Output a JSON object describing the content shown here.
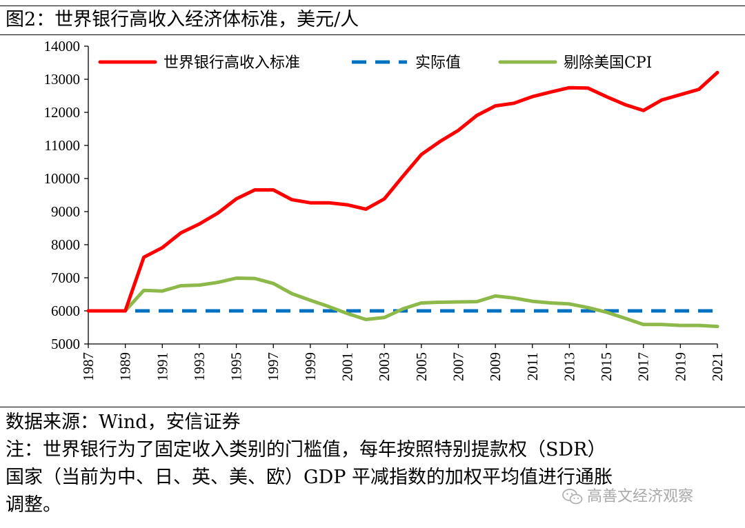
{
  "title": "图2：世界银行高收入经济体标准，美元/人",
  "chart_data": {
    "type": "line",
    "title": "图2：世界银行高收入经济体标准，美元/人",
    "xlabel": "",
    "ylabel": "",
    "ylim": [
      5000,
      14000
    ],
    "yticks": [
      5000,
      6000,
      7000,
      8000,
      9000,
      10000,
      11000,
      12000,
      13000,
      14000
    ],
    "xlim": [
      1987,
      2021
    ],
    "xticks": [
      1987,
      1989,
      1991,
      1993,
      1995,
      1997,
      1999,
      2001,
      2003,
      2005,
      2007,
      2009,
      2011,
      2013,
      2015,
      2017,
      2019,
      2021
    ],
    "legend_position": "top",
    "series": [
      {
        "name": "世界银行高收入标准",
        "color": "#ff0000",
        "style": "solid",
        "x": [
          1987,
          1988,
          1989,
          1990,
          1991,
          1992,
          1993,
          1994,
          1995,
          1996,
          1997,
          1998,
          1999,
          2000,
          2001,
          2002,
          2003,
          2004,
          2005,
          2006,
          2007,
          2008,
          2009,
          2010,
          2011,
          2012,
          2013,
          2014,
          2015,
          2016,
          2017,
          2018,
          2019,
          2020,
          2021
        ],
        "values": [
          6000,
          6000,
          6000,
          7620,
          7910,
          8356,
          8626,
          8956,
          9386,
          9656,
          9656,
          9361,
          9266,
          9266,
          9206,
          9076,
          9386,
          10066,
          10726,
          11116,
          11456,
          11906,
          12196,
          12276,
          12476,
          12616,
          12746,
          12736,
          12476,
          12236,
          12056,
          12376,
          12536,
          12696,
          13205
        ]
      },
      {
        "name": "实际值",
        "color": "#0070c0",
        "style": "dashed",
        "x": [
          1987,
          2021
        ],
        "values": [
          6000,
          6000
        ]
      },
      {
        "name": "剔除美国CPI",
        "color": "#8db84a",
        "style": "solid",
        "x": [
          1989,
          1990,
          1991,
          1992,
          1993,
          1994,
          1995,
          1996,
          1997,
          1998,
          1999,
          2000,
          2001,
          2002,
          2003,
          2004,
          2005,
          2006,
          2007,
          2008,
          2009,
          2010,
          2011,
          2012,
          2013,
          2014,
          2015,
          2016,
          2017,
          2018,
          2019,
          2020,
          2021
        ],
        "values": [
          6000,
          6620,
          6600,
          6760,
          6780,
          6860,
          6990,
          6980,
          6830,
          6520,
          6320,
          6130,
          5920,
          5740,
          5800,
          6060,
          6240,
          6260,
          6270,
          6280,
          6450,
          6390,
          6290,
          6240,
          6210,
          6100,
          5960,
          5780,
          5590,
          5590,
          5560,
          5560,
          5530
        ]
      }
    ]
  },
  "footer": {
    "source": "数据来源：Wind，安信证券",
    "note_line1": "注：世界银行为了固定收入类别的门槛值，每年按照特别提款权（SDR）",
    "note_line2": "国家（当前为中、日、英、美、欧）GDP 平减指数的加权平均值进行通胀",
    "note_line3": "调整。"
  },
  "watermark": "高善文经济观察"
}
